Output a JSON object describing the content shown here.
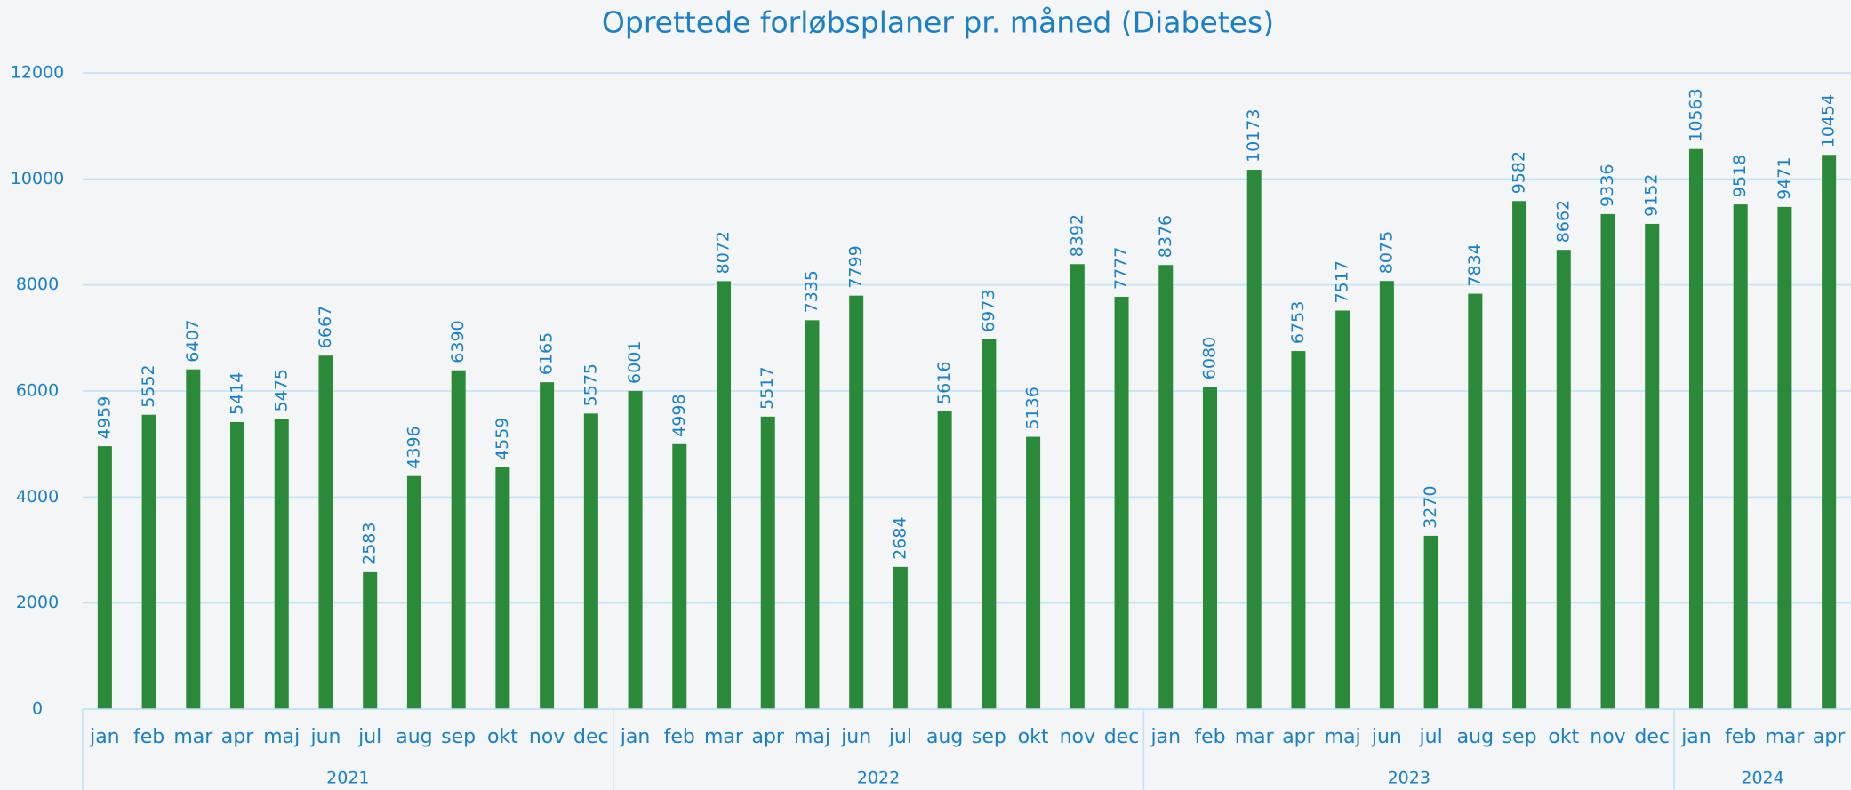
{
  "chart_data": {
    "type": "bar",
    "title": "Oprettede forløbsplaner pr. måned (Diabetes)",
    "groups": [
      {
        "label": "2021",
        "categories": [
          "jan",
          "feb",
          "mar",
          "apr",
          "maj",
          "jun",
          "jul",
          "aug",
          "sep",
          "okt",
          "nov",
          "dec"
        ]
      },
      {
        "label": "2022",
        "categories": [
          "jan",
          "feb",
          "mar",
          "apr",
          "maj",
          "jun",
          "jul",
          "aug",
          "sep",
          "okt",
          "nov",
          "dec"
        ]
      },
      {
        "label": "2023",
        "categories": [
          "jan",
          "feb",
          "mar",
          "apr",
          "maj",
          "jun",
          "jul",
          "aug",
          "sep",
          "okt",
          "nov",
          "dec"
        ]
      },
      {
        "label": "2024",
        "categories": [
          "jan",
          "feb",
          "mar",
          "apr"
        ]
      }
    ],
    "values": [
      4959,
      5552,
      6407,
      5414,
      5475,
      6667,
      2583,
      4396,
      6390,
      4559,
      6165,
      5575,
      6001,
      4998,
      8072,
      5517,
      7335,
      7799,
      2684,
      5616,
      6973,
      5136,
      8392,
      7777,
      8376,
      6080,
      10173,
      6753,
      7517,
      8075,
      3270,
      7834,
      9582,
      8662,
      9336,
      9152,
      10563,
      9518,
      9471,
      10454
    ],
    "color": "#2a8a3a",
    "ylim": [
      0,
      12000
    ],
    "yticks": [
      0,
      2000,
      4000,
      6000,
      8000,
      10000,
      12000
    ],
    "grid": true
  }
}
